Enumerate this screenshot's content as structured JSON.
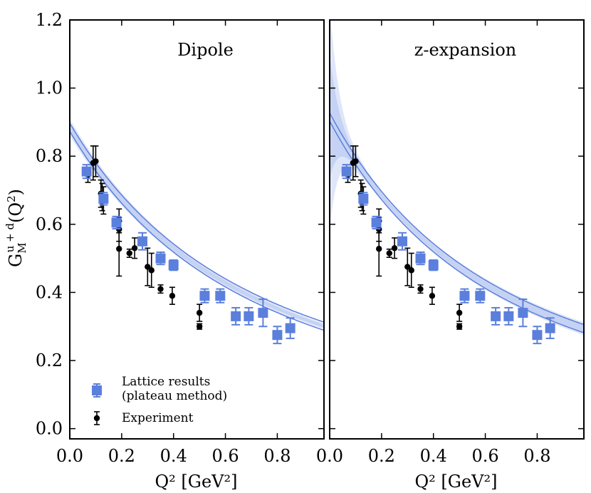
{
  "chart_data": {
    "type": "scatter",
    "ylabel": "G_M^{u+d}(Q^2)",
    "ylabel_parts": {
      "main": "G",
      "sub": "M",
      "sup": "u + d",
      "arg": "(Q",
      "arg_sup": "2",
      "close": ")"
    },
    "xlabel": "Q² [GeV²]",
    "xlim": [
      0.0,
      0.98
    ],
    "ylim": [
      -0.03,
      1.2
    ],
    "xticks": [
      "0.0",
      "0.2",
      "0.4",
      "0.6",
      "0.8"
    ],
    "yticks": [
      "0.0",
      "0.2",
      "0.4",
      "0.6",
      "0.8",
      "1.0",
      "1.2"
    ],
    "colors": {
      "lattice": "#5b7fdc",
      "band": "#c5d2f3",
      "band_outer": "#dfe6f9",
      "experiment": "#000000"
    },
    "legend": {
      "position": "lower-left",
      "entries": [
        {
          "label_line1": "Lattice results",
          "label_line2": "(plateau method)",
          "marker": "square",
          "color": "#5b7fdc"
        },
        {
          "label_line1": "Experiment",
          "label_line2": "",
          "marker": "circle",
          "color": "#000000"
        }
      ]
    },
    "lattice": [
      {
        "x": 0.065,
        "y": 0.755,
        "err": 0.02
      },
      {
        "x": 0.13,
        "y": 0.675,
        "err": 0.018
      },
      {
        "x": 0.18,
        "y": 0.605,
        "err": 0.018
      },
      {
        "x": 0.28,
        "y": 0.55,
        "err": 0.025
      },
      {
        "x": 0.35,
        "y": 0.5,
        "err": 0.018
      },
      {
        "x": 0.4,
        "y": 0.48,
        "err": 0.015
      },
      {
        "x": 0.52,
        "y": 0.39,
        "err": 0.02
      },
      {
        "x": 0.58,
        "y": 0.39,
        "err": 0.02
      },
      {
        "x": 0.64,
        "y": 0.33,
        "err": 0.025
      },
      {
        "x": 0.69,
        "y": 0.33,
        "err": 0.025
      },
      {
        "x": 0.745,
        "y": 0.34,
        "err": 0.04
      },
      {
        "x": 0.8,
        "y": 0.275,
        "err": 0.025
      },
      {
        "x": 0.85,
        "y": 0.295,
        "err": 0.03
      }
    ],
    "experiment": [
      {
        "x": 0.07,
        "y": 0.745,
        "err": 0.022
      },
      {
        "x": 0.09,
        "y": 0.78,
        "err": 0.05
      },
      {
        "x": 0.1,
        "y": 0.785,
        "err": 0.045
      },
      {
        "x": 0.12,
        "y": 0.69,
        "err": 0.04
      },
      {
        "x": 0.125,
        "y": 0.68,
        "err": 0.04
      },
      {
        "x": 0.13,
        "y": 0.67,
        "err": 0.04
      },
      {
        "x": 0.19,
        "y": 0.61,
        "err": 0.035
      },
      {
        "x": 0.19,
        "y": 0.585,
        "err": 0.035
      },
      {
        "x": 0.19,
        "y": 0.528,
        "err": 0.08
      },
      {
        "x": 0.23,
        "y": 0.515,
        "err": 0.012
      },
      {
        "x": 0.25,
        "y": 0.53,
        "err": 0.03
      },
      {
        "x": 0.3,
        "y": 0.475,
        "err": 0.055
      },
      {
        "x": 0.315,
        "y": 0.465,
        "err": 0.05
      },
      {
        "x": 0.35,
        "y": 0.41,
        "err": 0.012
      },
      {
        "x": 0.395,
        "y": 0.39,
        "err": 0.025
      },
      {
        "x": 0.5,
        "y": 0.34,
        "err": 0.025
      },
      {
        "x": 0.5,
        "y": 0.3,
        "err": 0.008
      }
    ],
    "panels": [
      {
        "title": "Dipole",
        "fit_type": "dipole",
        "fit": {
          "G0": 0.885,
          "M2": 1.37
        },
        "band": {
          "G0_err": 0.045,
          "rel_err_growth": 0.03
        }
      },
      {
        "title": "z-expansion",
        "fit_type": "z-expansion",
        "fit": {
          "G0": 0.915,
          "M2": 1.28
        },
        "band": {
          "G0_err": 0.32,
          "decay_scale": 0.035,
          "floor": 0.012
        }
      }
    ]
  }
}
